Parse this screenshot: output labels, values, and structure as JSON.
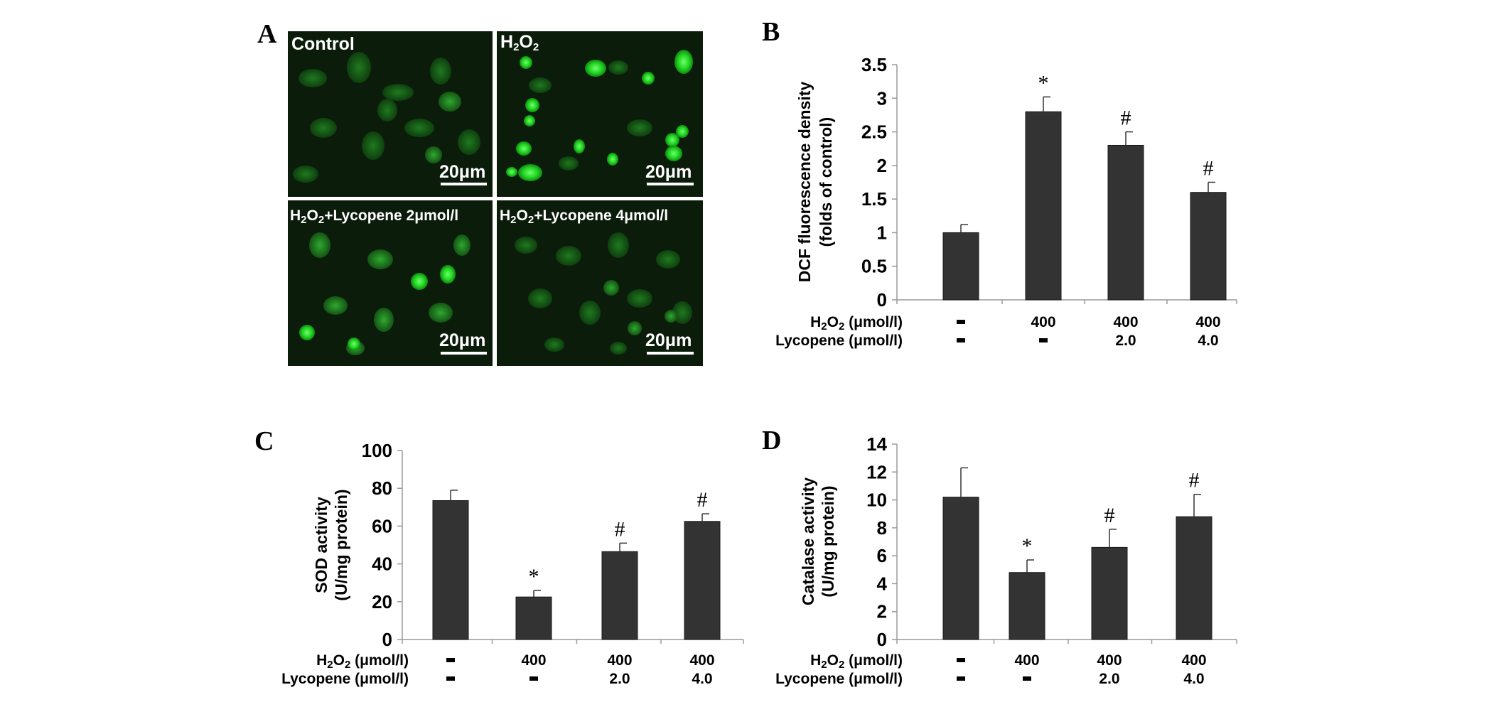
{
  "panel_labels": {
    "a": "A",
    "b": "B",
    "c": "C",
    "d": "D"
  },
  "micrographs": [
    {
      "label": "Control",
      "scale_bar": "20μm"
    },
    {
      "label": "H2O2",
      "scale_bar": "20μm"
    },
    {
      "label": "H2O2+Lycopene 2μmol/l",
      "scale_bar": "20μm"
    },
    {
      "label": "H2O2+Lycopene 4μmol/l",
      "scale_bar": "20μm"
    }
  ],
  "colors": {
    "bar": "#333333",
    "fluorescence": "#1fbf1f",
    "background_dark": "#0a1a0a"
  },
  "chart_data": [
    {
      "panel": "B",
      "type": "bar",
      "ylabel": "DCF fluorescence density (folds of control)",
      "ylabel_lines": [
        "DCF fluorescence density",
        "(folds of control)"
      ],
      "ylim": [
        0,
        3.5
      ],
      "yticks": [
        "0",
        "0.5",
        "1",
        "1.5",
        "2",
        "2.5",
        "3",
        "3.5"
      ],
      "row_labels": [
        "H2O2 (μmol/l)",
        "Lycopene (μmol/l)"
      ],
      "categories": [
        {
          "h2o2": "-",
          "lycopene": "-"
        },
        {
          "h2o2": "400",
          "lycopene": "-"
        },
        {
          "h2o2": "400",
          "lycopene": "2.0"
        },
        {
          "h2o2": "400",
          "lycopene": "4.0"
        }
      ],
      "values": [
        1.0,
        2.8,
        2.3,
        1.6
      ],
      "errors": [
        0.12,
        0.22,
        0.2,
        0.15
      ],
      "annotations": [
        "",
        "*",
        "#",
        "#"
      ]
    },
    {
      "panel": "C",
      "type": "bar",
      "ylabel": "SOD activity (U/mg protein)",
      "ylabel_lines": [
        "SOD activity",
        "(U/mg protein)"
      ],
      "ylim": [
        0,
        100
      ],
      "yticks": [
        "0",
        "20",
        "40",
        "60",
        "80",
        "100"
      ],
      "row_labels": [
        "H2O2 (μmol/l)",
        "Lycopene (μmol/l)"
      ],
      "categories": [
        {
          "h2o2": "-",
          "lycopene": "-"
        },
        {
          "h2o2": "400",
          "lycopene": "-"
        },
        {
          "h2o2": "400",
          "lycopene": "2.0"
        },
        {
          "h2o2": "400",
          "lycopene": "4.0"
        }
      ],
      "values": [
        73.5,
        22.5,
        46.5,
        62.5
      ],
      "errors": [
        5.5,
        3.5,
        4.5,
        4.0
      ],
      "annotations": [
        "",
        "*",
        "#",
        "#"
      ]
    },
    {
      "panel": "D",
      "type": "bar",
      "ylabel": "Catalase activity (U/mg protein)",
      "ylabel_lines": [
        "Catalase activity",
        "(U/mg protein)"
      ],
      "ylim": [
        0,
        14
      ],
      "yticks": [
        "0",
        "2",
        "4",
        "6",
        "8",
        "10",
        "12",
        "14"
      ],
      "row_labels": [
        "H2O2 (μmol/l)",
        "Lycopene (μmol/l)"
      ],
      "categories": [
        {
          "h2o2": "-",
          "lycopene": "-"
        },
        {
          "h2o2": "400",
          "lycopene": "-"
        },
        {
          "h2o2": "400",
          "lycopene": "2.0"
        },
        {
          "h2o2": "400",
          "lycopene": "4.0"
        }
      ],
      "values": [
        10.2,
        4.8,
        6.6,
        8.8
      ],
      "errors": [
        2.1,
        0.9,
        1.3,
        1.6
      ],
      "annotations": [
        "",
        "*",
        "#",
        "#"
      ]
    }
  ]
}
